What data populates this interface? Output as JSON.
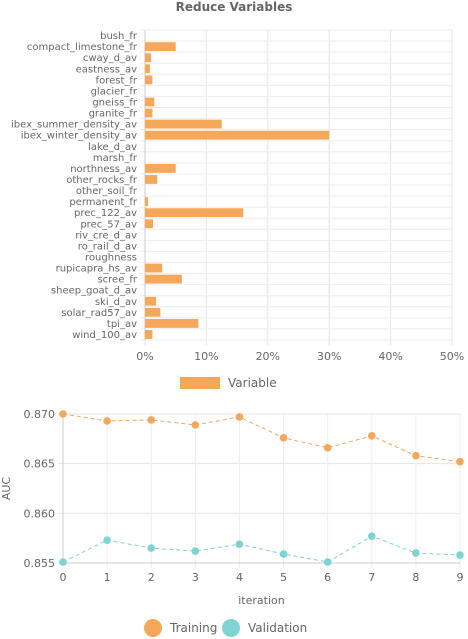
{
  "chart_data": [
    {
      "type": "bar",
      "orientation": "horizontal",
      "title": "Reduce Variables",
      "categories": [
        "bush_fr",
        "compact_limestone_fr",
        "cway_d_av",
        "eastness_av",
        "forest_fr",
        "glacier_fr",
        "gneiss_fr",
        "granite_fr",
        "ibex_summer_density_av",
        "ibex_winter_density_av",
        "lake_d_av",
        "marsh_fr",
        "northness_av",
        "other_rocks_fr",
        "other_soil_fr",
        "permanent_fr",
        "prec_122_av",
        "prec_57_av",
        "riv_cre_d_av",
        "ro_rail_d_av",
        "roughness",
        "rupicapra_hs_av",
        "scree_fr",
        "sheep_goat_d_av",
        "ski_d_av",
        "solar_rad57_av",
        "tpi_av",
        "wind_100_av"
      ],
      "series": [
        {
          "name": "Variable",
          "color": "#f5a85a",
          "values": [
            0,
            5.0,
            1.0,
            0.8,
            1.2,
            0,
            1.5,
            1.2,
            12.5,
            30.0,
            0,
            0,
            5.0,
            2.0,
            0,
            0.5,
            16.0,
            1.3,
            0,
            0,
            0,
            2.8,
            6.0,
            0,
            1.8,
            2.5,
            8.7,
            1.2
          ]
        }
      ],
      "xlim": [
        0,
        50
      ],
      "x_ticks": [
        "0%",
        "10%",
        "20%",
        "30%",
        "40%",
        "50%"
      ],
      "grid": true,
      "legend_position": "bottom"
    },
    {
      "type": "line",
      "title": "",
      "xlabel": "iteration",
      "ylabel": "AUC",
      "x": [
        0,
        1,
        2,
        3,
        4,
        5,
        6,
        7,
        8,
        9
      ],
      "ylim": [
        0.855,
        0.87
      ],
      "y_ticks": [
        "0.855",
        "0.860",
        "0.865",
        "0.870"
      ],
      "series": [
        {
          "name": "Training",
          "color": "#f5a85a",
          "values": [
            0.87,
            0.8693,
            0.8694,
            0.8689,
            0.8697,
            0.8676,
            0.8666,
            0.8678,
            0.8658,
            0.8652
          ]
        },
        {
          "name": "Validation",
          "color": "#7fd3d3",
          "values": [
            0.8551,
            0.8573,
            0.8565,
            0.8562,
            0.8569,
            0.8559,
            0.8551,
            0.8577,
            0.856,
            0.8558
          ]
        }
      ],
      "grid": true,
      "legend_position": "bottom"
    }
  ]
}
